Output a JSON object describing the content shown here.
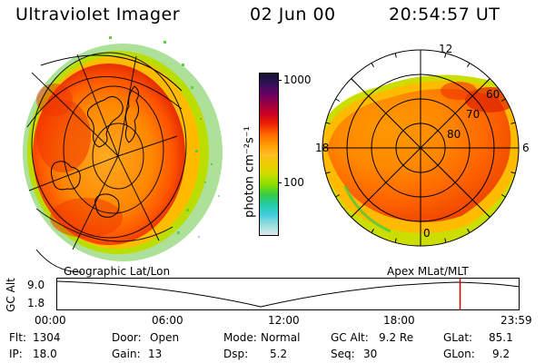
{
  "header": {
    "instrument": "Ultraviolet Imager",
    "date": "02 Jun 00",
    "time": "20:54:57 UT"
  },
  "left_panel": {
    "label": "Geographic Lat/Lon",
    "intensity": [
      0.55,
      0.65,
      0.75,
      0.7,
      0.6
    ]
  },
  "right_panel": {
    "label": "Apex MLat/MLT",
    "mlt_labels": [
      "12",
      "18",
      "6",
      "0"
    ],
    "lat_labels": [
      "60",
      "70",
      "80"
    ]
  },
  "colorbar": {
    "unit_label": "photon cm⁻²s⁻¹",
    "ticks": [
      "1000",
      "100"
    ],
    "colors": [
      "#111133",
      "#331155",
      "#660066",
      "#990044",
      "#cc0022",
      "#ee2200",
      "#ff6600",
      "#ff9900",
      "#ffbb22",
      "#eecc00",
      "#ccdd00",
      "#88dd00",
      "#33cc44",
      "#22ccaa",
      "#44ccdd",
      "#99dddd",
      "#dde9ee"
    ]
  },
  "altitude_plot": {
    "ylabel": "GC Alt",
    "y_ticks": [
      "9.0",
      "1.8"
    ],
    "x_ticks": [
      "00:00",
      "06:00",
      "12:00",
      "18:00",
      "23:59"
    ],
    "marker_time": "20:54:57",
    "marker_color": "#cc0000"
  },
  "info_rows": [
    [
      {
        "key": "Flt:",
        "value": "1304"
      },
      {
        "key": "Door:",
        "value": "Open"
      },
      {
        "key": "Mode:",
        "value": "Normal"
      },
      {
        "key": "GC Alt:",
        "value": "9.2 Re"
      },
      {
        "key": "GLat:",
        "value": "85.1"
      }
    ],
    [
      {
        "key": "IP:",
        "value": "18.0"
      },
      {
        "key": "Gain:",
        "value": "13"
      },
      {
        "key": "Dsp:",
        "value": "5.2"
      },
      {
        "key": "Seq:",
        "value": "30"
      },
      {
        "key": "GLon:",
        "value": "9.2"
      }
    ]
  ]
}
